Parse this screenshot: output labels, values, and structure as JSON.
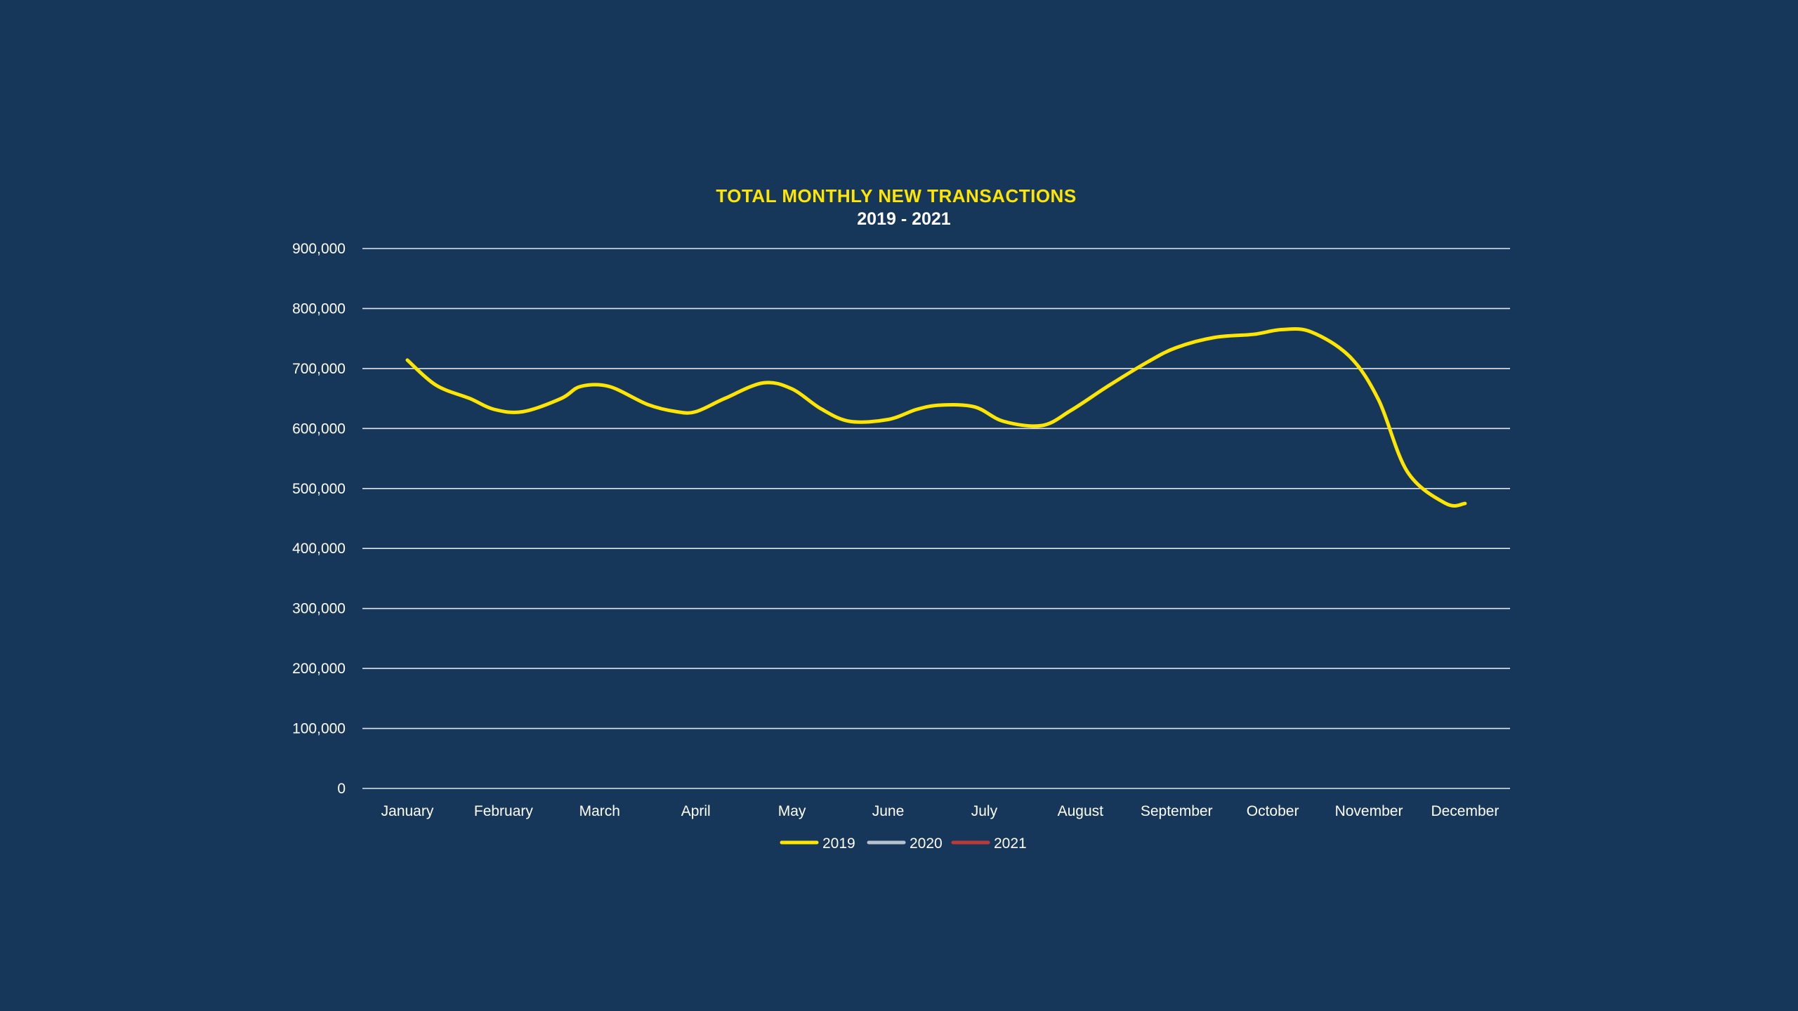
{
  "chart_data": {
    "type": "line",
    "title": "TOTAL MONTHLY NEW TRANSACTIONS",
    "subtitle": "2019 - 2021",
    "xlabel": "",
    "ylabel": "",
    "ylim": [
      0,
      900000
    ],
    "yticks": [
      0,
      100000,
      200000,
      300000,
      400000,
      500000,
      600000,
      700000,
      800000,
      900000
    ],
    "ytick_labels": [
      "0",
      "100,000",
      "200,000",
      "300,000",
      "400,000",
      "500,000",
      "600,000",
      "700,000",
      "800,000",
      "900,000"
    ],
    "categories": [
      "January",
      "February",
      "March",
      "April",
      "May",
      "June",
      "July",
      "August",
      "September",
      "October",
      "November",
      "December"
    ],
    "grid": true,
    "legend_position": "bottom",
    "series": [
      {
        "name": "2019",
        "color": "#ffe500",
        "x": [
          0,
          0.3,
          0.65,
          0.9,
          1.2,
          1.6,
          1.8,
          2.1,
          2.5,
          2.8,
          3.0,
          3.3,
          3.7,
          4.0,
          4.3,
          4.6,
          5.0,
          5.3,
          5.55,
          5.9,
          6.2,
          6.6,
          6.9,
          7.3,
          7.7,
          8.0,
          8.4,
          8.8,
          9.1,
          9.4,
          9.8,
          10.1,
          10.4,
          10.8,
          11.0
        ],
        "values": [
          714000,
          672000,
          650000,
          632000,
          628000,
          650000,
          670000,
          670000,
          640000,
          628000,
          628000,
          650000,
          676000,
          666000,
          633000,
          612000,
          615000,
          632000,
          639000,
          636000,
          612000,
          605000,
          630000,
          672000,
          711000,
          735000,
          752000,
          757000,
          765000,
          761000,
          720000,
          648000,
          528000,
          475000,
          475000
        ]
      },
      {
        "name": "2020",
        "color": "#b7c2d0",
        "x": [],
        "values": []
      },
      {
        "name": "2021",
        "color": "#b83a3a",
        "x": [],
        "values": []
      }
    ]
  }
}
